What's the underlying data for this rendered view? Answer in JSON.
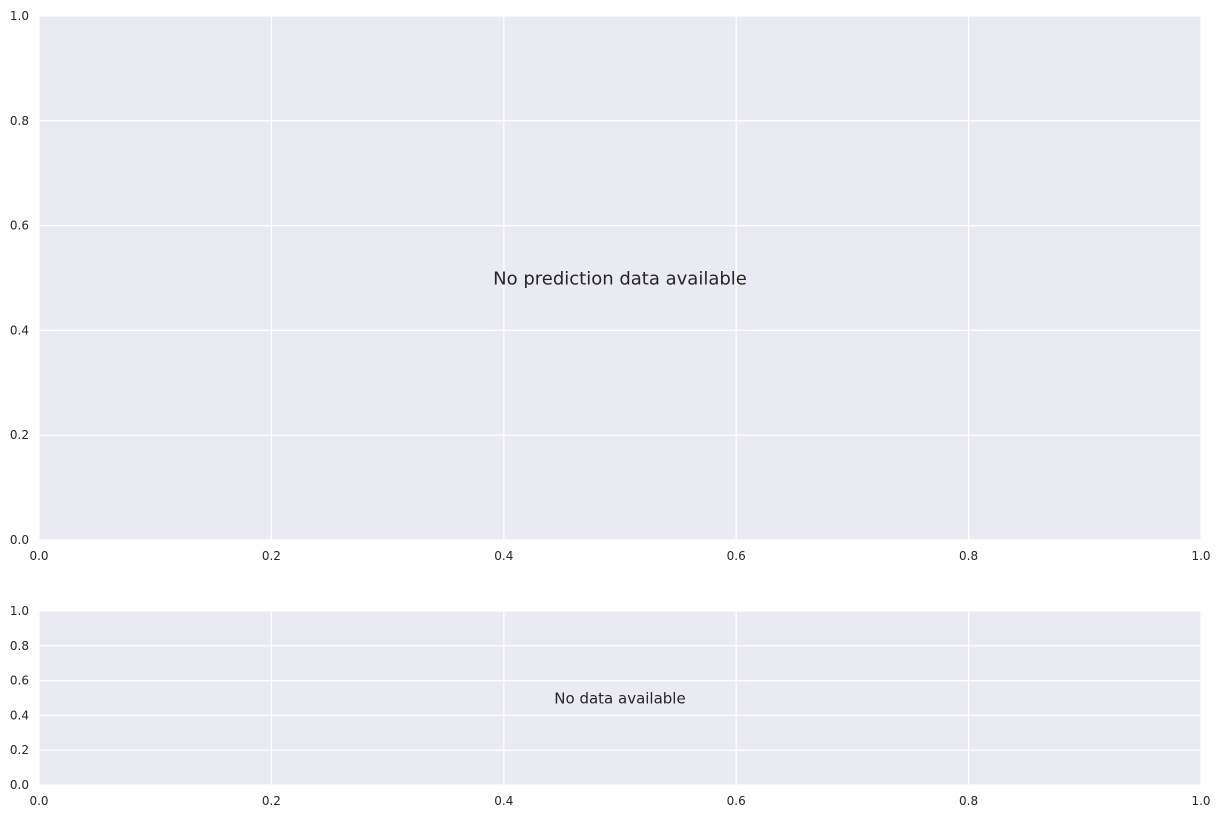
{
  "colors": {
    "plot_background": "#eaeaf2",
    "grid": "#ffffff",
    "text": "#262626"
  },
  "chart_data": [
    {
      "type": "line",
      "title": "",
      "xlabel": "",
      "ylabel": "",
      "xlim": [
        0,
        1
      ],
      "ylim": [
        0,
        1
      ],
      "x_ticks": [
        "0.0",
        "0.2",
        "0.4",
        "0.6",
        "0.8",
        "1.0"
      ],
      "y_ticks": [
        "0.0",
        "0.2",
        "0.4",
        "0.6",
        "0.8",
        "1.0"
      ],
      "grid": true,
      "series": [],
      "message": "No prediction data available"
    },
    {
      "type": "line",
      "title": "",
      "xlabel": "",
      "ylabel": "",
      "xlim": [
        0,
        1
      ],
      "ylim": [
        0,
        1
      ],
      "x_ticks": [
        "0.0",
        "0.2",
        "0.4",
        "0.6",
        "0.8",
        "1.0"
      ],
      "y_ticks": [
        "0.0",
        "0.2",
        "0.4",
        "0.6",
        "0.8",
        "1.0"
      ],
      "grid": true,
      "series": [],
      "message": "No data available"
    }
  ]
}
